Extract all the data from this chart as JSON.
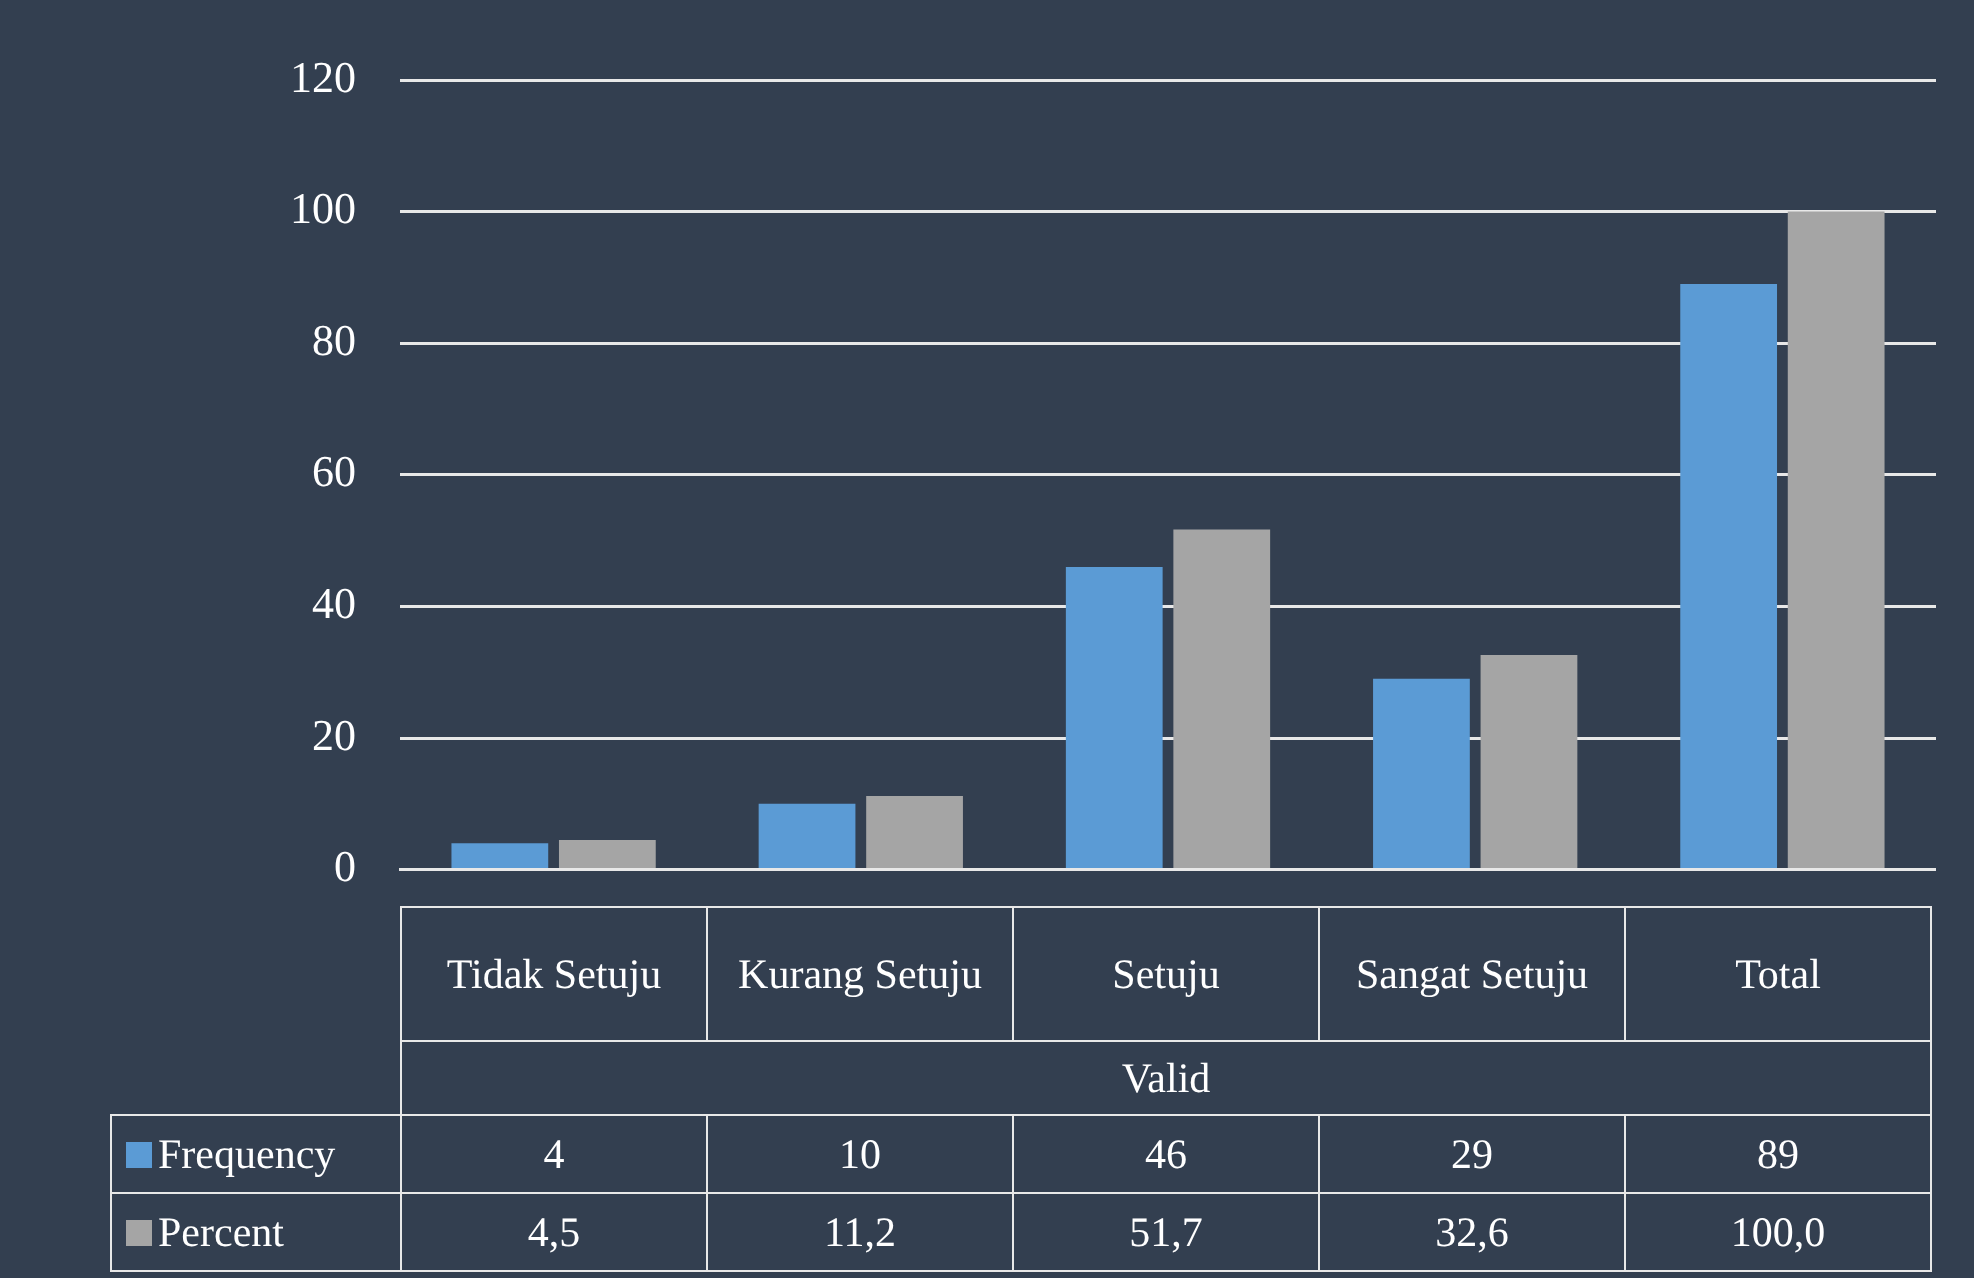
{
  "chart_data": {
    "type": "bar",
    "xlabel": "Valid",
    "categories": [
      "Tidak Setuju",
      "Kurang Setuju",
      "Setuju",
      "Sangat Setuju",
      "Total"
    ],
    "series": [
      {
        "name": "Frequency",
        "color": "#5b9bd5",
        "values": [
          4,
          10,
          46,
          29,
          89
        ],
        "value_labels": [
          "4",
          "10",
          "46",
          "29",
          "89"
        ]
      },
      {
        "name": "Percent",
        "color": "#a5a5a5",
        "values": [
          4.5,
          11.2,
          51.7,
          32.6,
          100.0
        ],
        "value_labels": [
          "4,5",
          "11,2",
          "51,7",
          "32,6",
          "100,0"
        ]
      }
    ],
    "ylim": [
      0,
      120
    ],
    "yticks": [
      0,
      20,
      40,
      60,
      80,
      100,
      120
    ],
    "grid": "y",
    "legend": "bottom"
  }
}
